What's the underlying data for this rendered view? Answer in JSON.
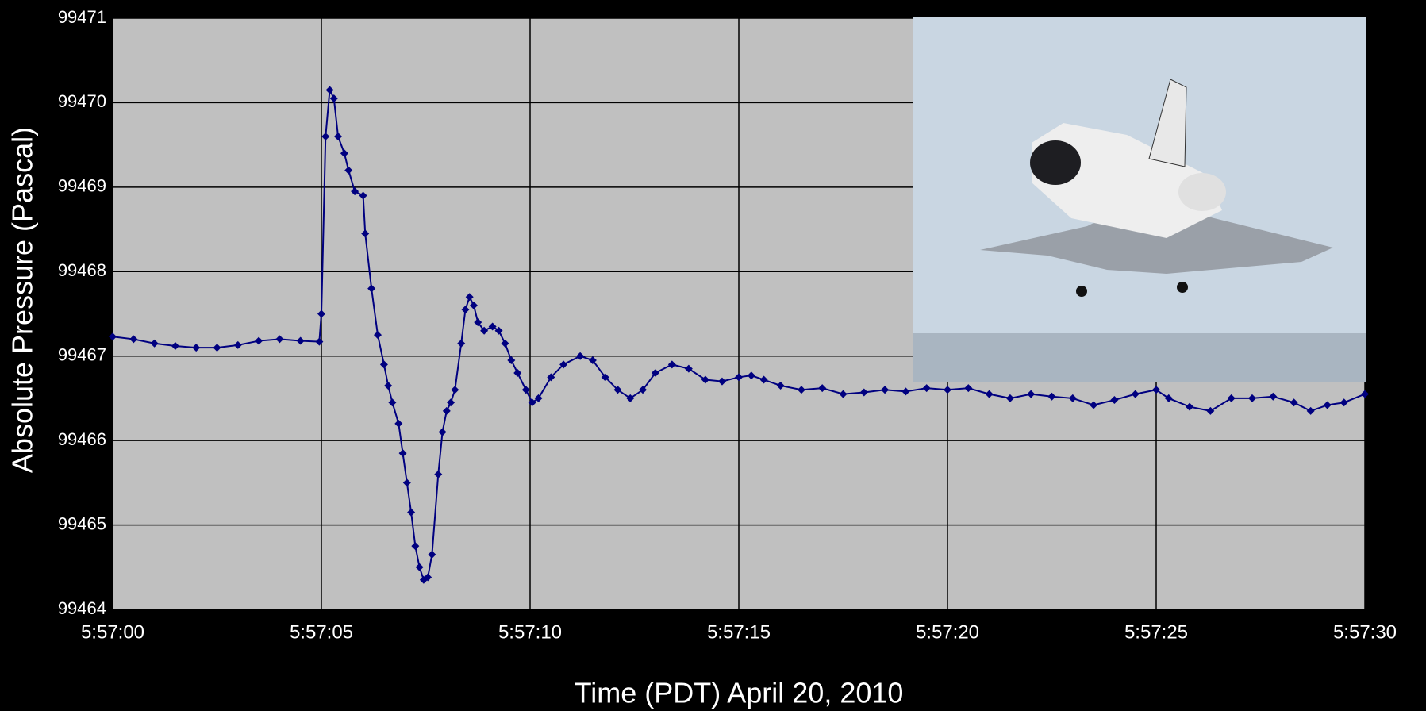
{
  "chart_data": {
    "type": "line",
    "x_label": "Time (PDT) April 20, 2010",
    "y_label": "Absolute Pressure (Pascal)",
    "x": [
      0,
      0.5,
      1.0,
      1.5,
      2.0,
      2.5,
      3.0,
      3.5,
      4.0,
      4.5,
      4.95,
      5.0,
      5.1,
      5.2,
      5.3,
      5.4,
      5.55,
      5.65,
      5.8,
      6.0,
      6.05,
      6.2,
      6.35,
      6.5,
      6.6,
      6.7,
      6.85,
      6.95,
      7.05,
      7.15,
      7.25,
      7.35,
      7.45,
      7.55,
      7.65,
      7.8,
      7.9,
      8.0,
      8.1,
      8.2,
      8.35,
      8.45,
      8.55,
      8.65,
      8.75,
      8.9,
      9.1,
      9.25,
      9.4,
      9.55,
      9.7,
      9.9,
      10.05,
      10.2,
      10.5,
      10.8,
      11.2,
      11.5,
      11.8,
      12.1,
      12.4,
      12.7,
      13.0,
      13.4,
      13.8,
      14.2,
      14.6,
      15.0,
      15.3,
      15.6,
      16.0,
      16.5,
      17.0,
      17.5,
      18.0,
      18.5,
      19.0,
      19.5,
      20.0,
      20.5,
      21.0,
      21.5,
      22.0,
      22.5,
      23.0,
      23.5,
      24.0,
      24.5,
      25.0,
      25.3,
      25.8,
      26.3,
      26.8,
      27.3,
      27.8,
      28.3,
      28.7,
      29.1,
      29.5,
      30.0
    ],
    "series": [
      {
        "name": "Absolute Pressure",
        "color": "#000080",
        "values": [
          99467.23,
          99467.2,
          99467.15,
          99467.12,
          99467.1,
          99467.1,
          99467.13,
          99467.18,
          99467.2,
          99467.18,
          99467.17,
          99467.5,
          99469.6,
          99470.15,
          99470.05,
          99469.6,
          99469.4,
          99469.2,
          99468.95,
          99468.9,
          99468.45,
          99467.8,
          99467.25,
          99466.9,
          99466.65,
          99466.45,
          99466.2,
          99465.85,
          99465.5,
          99465.15,
          99464.75,
          99464.5,
          99464.35,
          99464.38,
          99464.65,
          99465.6,
          99466.1,
          99466.35,
          99466.45,
          99466.6,
          99467.15,
          99467.55,
          99467.7,
          99467.6,
          99467.4,
          99467.3,
          99467.35,
          99467.3,
          99467.15,
          99466.95,
          99466.8,
          99466.6,
          99466.45,
          99466.5,
          99466.75,
          99466.9,
          99467.0,
          99466.95,
          99466.75,
          99466.6,
          99466.5,
          99466.6,
          99466.8,
          99466.9,
          99466.85,
          99466.72,
          99466.7,
          99466.75,
          99466.77,
          99466.72,
          99466.65,
          99466.6,
          99466.62,
          99466.55,
          99466.57,
          99466.6,
          99466.58,
          99466.62,
          99466.6,
          99466.62,
          99466.55,
          99466.5,
          99466.55,
          99466.52,
          99466.5,
          99466.42,
          99466.48,
          99466.55,
          99466.6,
          99466.5,
          99466.4,
          99466.35,
          99466.5,
          99466.5,
          99466.52,
          99466.45,
          99466.35,
          99466.42,
          99466.45,
          99466.55
        ]
      }
    ],
    "xlim": [
      0,
      30
    ],
    "xticks": [
      {
        "value": 0,
        "label": "5:57:00"
      },
      {
        "value": 5,
        "label": "5:57:05"
      },
      {
        "value": 10,
        "label": "5:57:10"
      },
      {
        "value": 15,
        "label": "5:57:15"
      },
      {
        "value": 20,
        "label": "5:57:20"
      },
      {
        "value": 25,
        "label": "5:57:25"
      },
      {
        "value": 30,
        "label": "5:57:30"
      }
    ],
    "ylim": [
      99464,
      99471
    ],
    "yticks": [
      99464,
      99465,
      99466,
      99467,
      99468,
      99469,
      99470,
      99471
    ],
    "grid": true
  }
}
